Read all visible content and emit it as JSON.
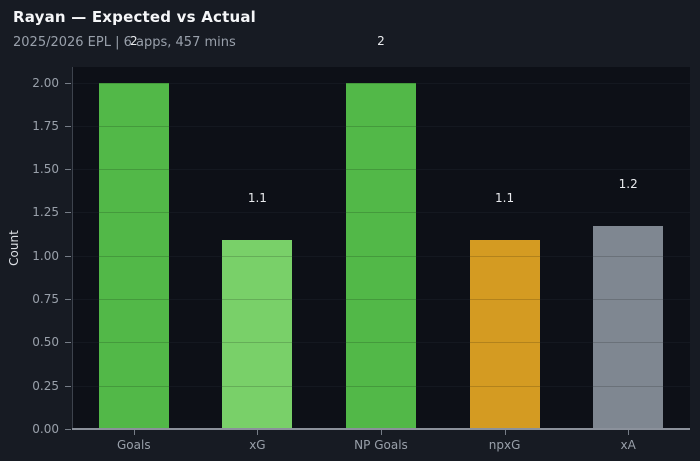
{
  "header": {
    "title": "Rayan — Expected vs Actual",
    "subtitle": "2025/2026 EPL | 6 apps, 457 mins"
  },
  "chart_data": {
    "type": "bar",
    "title": "Rayan — Expected vs Actual",
    "subtitle": "2025/2026 EPL | 6 apps, 457 mins",
    "categories": [
      "Goals",
      "xG",
      "NP Goals",
      "npxG",
      "xA"
    ],
    "values": [
      2.0,
      1.09,
      2.0,
      1.09,
      1.17
    ],
    "bar_labels": [
      "2",
      "1.1",
      "2",
      "1.1",
      "1.2"
    ],
    "bar_colors": [
      "#52b848",
      "#79d069",
      "#52b848",
      "#d49b22",
      "#7f8791"
    ],
    "xlabel": "",
    "ylabel": "Count",
    "ylim": [
      0,
      2.09
    ],
    "ytick_labels": [
      "0.00",
      "0.25",
      "0.50",
      "0.75",
      "1.00",
      "1.25",
      "1.50",
      "1.75",
      "2.00"
    ],
    "ytick_values": [
      0,
      0.25,
      0.5,
      0.75,
      1.0,
      1.25,
      1.5,
      1.75,
      2.0
    ],
    "grid": true,
    "legend": false
  },
  "colors": {
    "background": "#171b23",
    "plot_background": "#0d1017",
    "title_text": "#f5f6f8",
    "subtitle_text": "#99a0ab",
    "tick_text": "#99a0aa",
    "axis_line": "#8b919b"
  }
}
